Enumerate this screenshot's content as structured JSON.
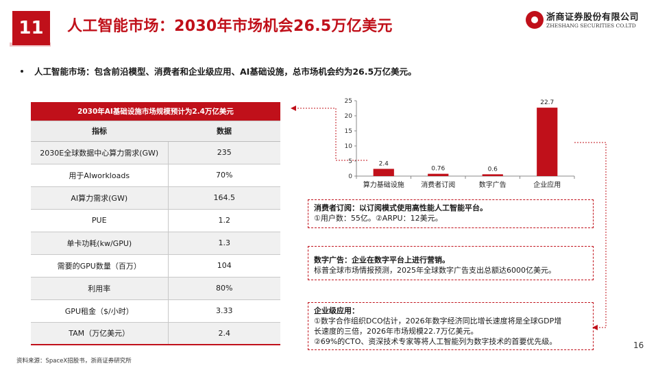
{
  "header": {
    "section_number": "11",
    "title": "人工智能市场：2030年市场机会26.5万亿美元",
    "logo_cn": "浙商证券股份有限公司",
    "logo_en": "ZHESHANG SECURITIES CO.LTD"
  },
  "bullet": "人工智能市场：包含前沿模型、消费者和企业级应用、AI基础设施，总市场机会约为26.5万亿美元。",
  "table": {
    "title": "2030年AI基础设施市场规模预计为2.4万亿美元",
    "headers": [
      "指标",
      "数据"
    ],
    "rows": [
      {
        "metric": "2030E全球数据中心算力需求(GW)",
        "value": "235"
      },
      {
        "metric": "用于AIworkloads",
        "value": "70%"
      },
      {
        "metric": "AI算力需求(GW)",
        "value": "164.5"
      },
      {
        "metric": "PUE",
        "value": "1.2"
      },
      {
        "metric": "单卡功耗(kw/GPU)",
        "value": "1.3"
      },
      {
        "metric": "需要的GPU数量（百万）",
        "value": "104"
      },
      {
        "metric": "利用率",
        "value": "80%"
      },
      {
        "metric": "GPU租金（$/小时）",
        "value": "3.33"
      },
      {
        "metric": "TAM（万亿美元）",
        "value": "2.4"
      }
    ]
  },
  "chart_data": {
    "type": "bar",
    "categories": [
      "算力基础设施",
      "消费者订阅",
      "数字广告",
      "企业应用"
    ],
    "values": [
      2.4,
      0.76,
      0.6,
      22.7
    ],
    "value_labels": [
      "2.4",
      "0.76",
      "0.6",
      "22.7"
    ],
    "yticks": [
      "0",
      "5",
      "10",
      "15",
      "20",
      "25"
    ],
    "ylim": [
      0,
      25
    ],
    "bar_color": "#c0101a",
    "grid": false,
    "legend": "none"
  },
  "callouts": {
    "consumer": {
      "head": "消费者订阅：以订阅模式使用高性能人工智能平台。",
      "body": "①用户数：55亿。②ARPU：12美元。"
    },
    "ads": {
      "head": "数字广告：企业在数字平台上进行营销。",
      "body": "标普全球市场情报预测，2025年全球数字广告支出总额达6000亿美元。"
    },
    "enterprise": {
      "head": "企业级应用：",
      "line1": "①数字合作组织DCO估计，2026年数字经济同比增长速度将是全球GDP增",
      "line2": "长速度的三倍，2026年市场规模22.7万亿美元。",
      "line3": "②69%的CTO、资深技术专家等将人工智能列为数字技术的首要优先级。"
    }
  },
  "page_number": "16",
  "source": "资料来源：SpaceX招股书，浙商证券研究所",
  "colors": {
    "accent": "#c0101a"
  }
}
